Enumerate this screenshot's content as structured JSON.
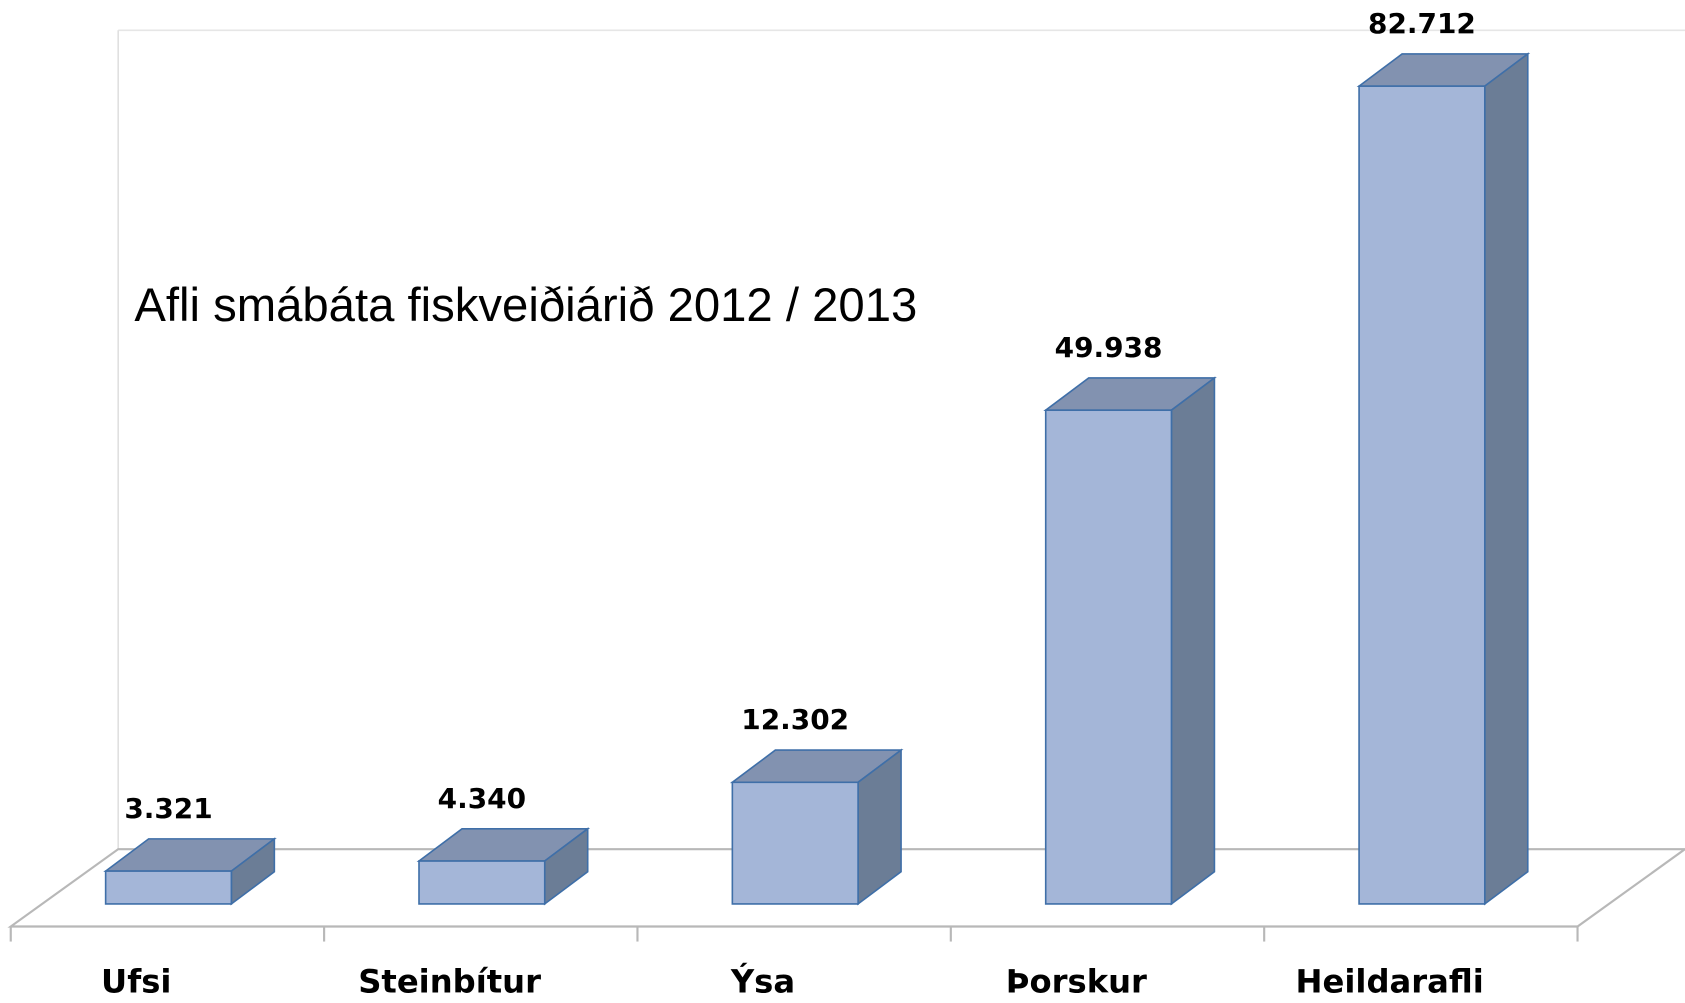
{
  "chart_data": {
    "type": "bar3d",
    "title": "Afli smábáta fiskveiðiárið 2012 / 2013",
    "categories": [
      "Ufsi",
      "Steinbítur",
      "Ýsa",
      "Þorskur",
      "Heildarafli"
    ],
    "values": [
      3321,
      4340,
      12302,
      49938,
      82712
    ],
    "value_labels": [
      "3.321",
      "4.340",
      "12.302",
      "49.938",
      "82.712"
    ],
    "color": "#a4b6d8"
  }
}
